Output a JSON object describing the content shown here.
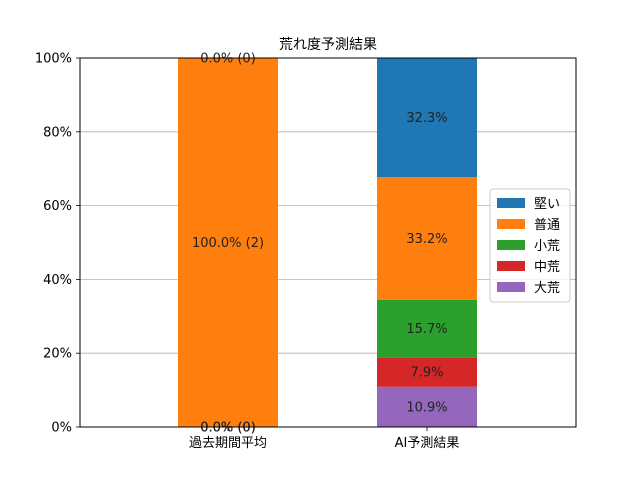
{
  "chart_data": {
    "type": "bar",
    "stacked": true,
    "title": "荒れ度予測結果",
    "categories": [
      "過去期間平均",
      "AI予測結果"
    ],
    "ylim": [
      0,
      100
    ],
    "yticks": [
      "0%",
      "20%",
      "40%",
      "60%",
      "80%",
      "100%"
    ],
    "ytick_values": [
      0,
      20,
      40,
      60,
      80,
      100
    ],
    "grid": "horizontal",
    "legend_position": "right",
    "series": [
      {
        "name": "大荒",
        "color": "#9467bd",
        "values": [
          0.0,
          10.9
        ],
        "labels": [
          "0.0% (0)",
          "10.9%"
        ]
      },
      {
        "name": "中荒",
        "color": "#d62728",
        "values": [
          0.0,
          7.9
        ],
        "labels": [
          "0.0% (0)",
          "7.9%"
        ]
      },
      {
        "name": "小荒",
        "color": "#2ca02c",
        "values": [
          0.0,
          15.7
        ],
        "labels": [
          "0.0% (0)",
          "15.7%"
        ]
      },
      {
        "name": "普通",
        "color": "#ff7f0e",
        "values": [
          100.0,
          33.2
        ],
        "labels": [
          "100.0% (2)",
          "33.2%"
        ]
      },
      {
        "name": "堅い",
        "color": "#1f77b4",
        "values": [
          0.0,
          32.3
        ],
        "labels": [
          "0.0% (0)",
          "32.3%"
        ]
      }
    ],
    "legend_order": [
      "堅い",
      "普通",
      "小荒",
      "中荒",
      "大荒"
    ]
  }
}
